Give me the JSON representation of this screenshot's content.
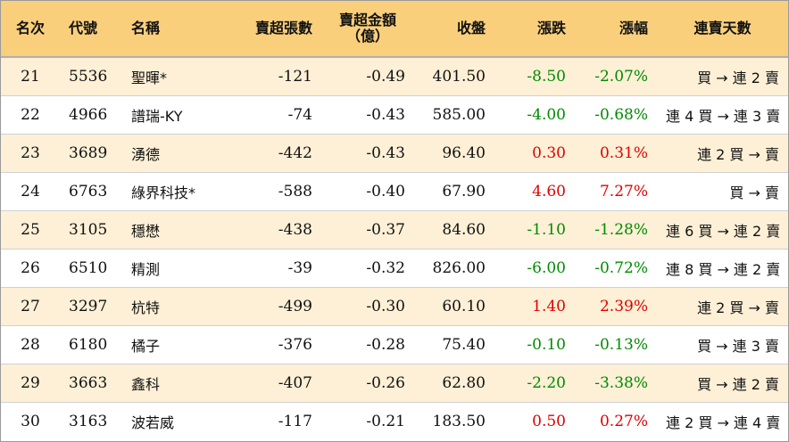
{
  "headers": {
    "rank": "名次",
    "code": "代號",
    "name": "名稱",
    "net_lots": "賣超張數",
    "amount_line1": "賣超金額",
    "amount_line2": "（億）",
    "close": "收盤",
    "change": "漲跌",
    "pct": "漲幅",
    "streak": "連賣天數"
  },
  "rows": [
    {
      "rank": "21",
      "code": "5536",
      "name": "聖暉*",
      "net_lots": "-121",
      "amount": "-0.49",
      "close": "401.50",
      "change": "-8.50",
      "pct": "-2.07%",
      "streak": "買 → 連 2 賣",
      "dir": "neg"
    },
    {
      "rank": "22",
      "code": "4966",
      "name": "譜瑞-KY",
      "net_lots": "-74",
      "amount": "-0.43",
      "close": "585.00",
      "change": "-4.00",
      "pct": "-0.68%",
      "streak": "連 4 買 → 連 3 賣",
      "dir": "neg"
    },
    {
      "rank": "23",
      "code": "3689",
      "name": "湧德",
      "net_lots": "-442",
      "amount": "-0.43",
      "close": "96.40",
      "change": "0.30",
      "pct": "0.31%",
      "streak": "連 2 買 → 賣",
      "dir": "pos"
    },
    {
      "rank": "24",
      "code": "6763",
      "name": "綠界科技*",
      "net_lots": "-588",
      "amount": "-0.40",
      "close": "67.90",
      "change": "4.60",
      "pct": "7.27%",
      "streak": "買 → 賣",
      "dir": "pos"
    },
    {
      "rank": "25",
      "code": "3105",
      "name": "穩懋",
      "net_lots": "-438",
      "amount": "-0.37",
      "close": "84.60",
      "change": "-1.10",
      "pct": "-1.28%",
      "streak": "連 6 買 → 連 2 賣",
      "dir": "neg"
    },
    {
      "rank": "26",
      "code": "6510",
      "name": "精測",
      "net_lots": "-39",
      "amount": "-0.32",
      "close": "826.00",
      "change": "-6.00",
      "pct": "-0.72%",
      "streak": "連 8 買 → 連 2 賣",
      "dir": "neg"
    },
    {
      "rank": "27",
      "code": "3297",
      "name": "杭特",
      "net_lots": "-499",
      "amount": "-0.30",
      "close": "60.10",
      "change": "1.40",
      "pct": "2.39%",
      "streak": "連 2 買 → 賣",
      "dir": "pos"
    },
    {
      "rank": "28",
      "code": "6180",
      "name": "橘子",
      "net_lots": "-376",
      "amount": "-0.28",
      "close": "75.40",
      "change": "-0.10",
      "pct": "-0.13%",
      "streak": "買 → 連 3 賣",
      "dir": "neg"
    },
    {
      "rank": "29",
      "code": "3663",
      "name": "鑫科",
      "net_lots": "-407",
      "amount": "-0.26",
      "close": "62.80",
      "change": "-2.20",
      "pct": "-3.38%",
      "streak": "買 → 連 2 賣",
      "dir": "neg"
    },
    {
      "rank": "30",
      "code": "3163",
      "name": "波若威",
      "net_lots": "-117",
      "amount": "-0.21",
      "close": "183.50",
      "change": "0.50",
      "pct": "0.27%",
      "streak": "連 2 買 → 連 4 賣",
      "dir": "pos"
    }
  ],
  "colors": {
    "header_bg": "#f9cf7c",
    "row_alt_bg": "#fdf0d6",
    "up": "#e00000",
    "down": "#008a00"
  }
}
